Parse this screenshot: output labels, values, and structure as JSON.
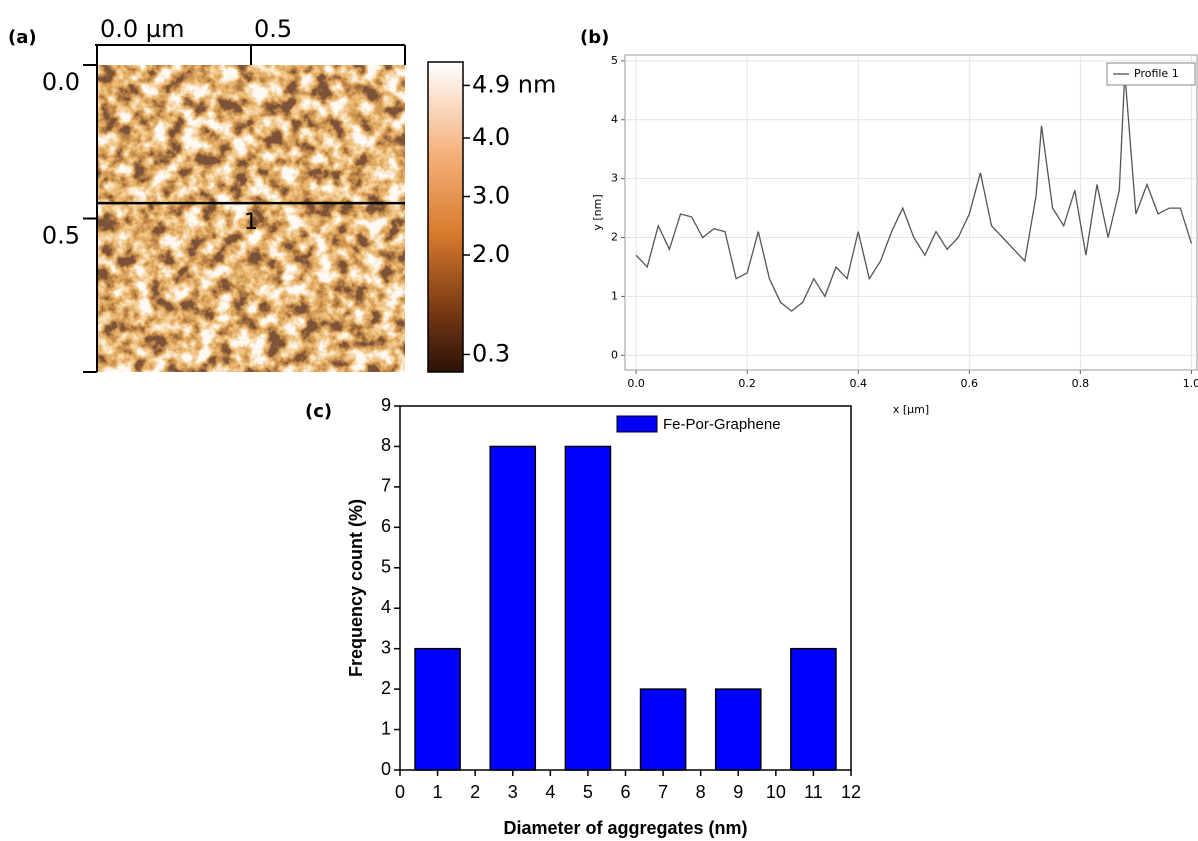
{
  "chart_data": [
    {
      "type": "image",
      "panel_label": "(a)",
      "xlim": [
        0,
        1
      ],
      "xticks": [
        {
          "value": 0,
          "label": "0.0 µm"
        },
        0.5
      ],
      "ylim": [
        0,
        1
      ],
      "yticks": [
        {
          "value": 0,
          "label": "0.0"
        },
        0.5
      ],
      "profile_line": {
        "label": "1",
        "y": 0.45
      },
      "colorbar": {
        "lim": [
          0,
          5.3
        ],
        "ticks": [
          {
            "value": 4.9,
            "label": "4.9 nm"
          },
          {
            "value": 4,
            "label": "4.0"
          },
          {
            "value": 3,
            "label": "3.0"
          },
          {
            "value": 2,
            "label": "2.0"
          },
          0.3
        ]
      }
    },
    {
      "type": "line",
      "panel_label": "(b)",
      "xlabel": "x [µm]",
      "ylabel": "y [nm]",
      "x": [
        0,
        0.02,
        0.04,
        0.06,
        0.08,
        0.1,
        0.12,
        0.14,
        0.16,
        0.18,
        0.2,
        0.22,
        0.24,
        0.26,
        0.28,
        0.3,
        0.32,
        0.34,
        0.36,
        0.38,
        0.4,
        0.42,
        0.44,
        0.46,
        0.48,
        0.5,
        0.52,
        0.54,
        0.56,
        0.58,
        0.6,
        0.62,
        0.64,
        0.66,
        0.68,
        0.7,
        0.72,
        0.73,
        0.75,
        0.77,
        0.79,
        0.81,
        0.83,
        0.85,
        0.87,
        0.88,
        0.9,
        0.92,
        0.94,
        0.96,
        0.98,
        1.0
      ],
      "series": [
        {
          "name": "Profile 1",
          "color": "#555555",
          "values": [
            1.7,
            1.5,
            2.2,
            1.8,
            2.4,
            2.35,
            2.0,
            2.15,
            2.1,
            1.3,
            1.4,
            2.1,
            1.3,
            0.9,
            0.75,
            0.9,
            1.3,
            1.0,
            1.5,
            1.3,
            2.1,
            1.3,
            1.6,
            2.1,
            2.5,
            2.0,
            1.7,
            2.1,
            1.8,
            2.0,
            2.4,
            3.1,
            2.2,
            2.0,
            1.8,
            1.6,
            2.7,
            3.9,
            2.5,
            2.2,
            2.8,
            1.7,
            2.9,
            2.0,
            2.8,
            4.8,
            2.4,
            2.9,
            2.4,
            2.5,
            2.5,
            1.9
          ]
        }
      ],
      "xlim": [
        -0.02,
        1.01
      ],
      "xticks": [
        {
          "value": 0,
          "label": "0.0"
        },
        0.2,
        0.4,
        0.6,
        0.8,
        {
          "value": 1,
          "label": "1.0"
        }
      ],
      "ylim": [
        -0.25,
        5.1
      ],
      "yticks": [
        0,
        1,
        2,
        3,
        4,
        5
      ],
      "grid": true,
      "legend": "upper right"
    },
    {
      "type": "bar",
      "panel_label": "(c)",
      "xlabel": "Diameter of aggregates (nm)",
      "ylabel": "Frequency count (%)",
      "x": [
        1,
        3,
        5,
        7,
        9,
        11
      ],
      "series": [
        {
          "name": "Fe-Por-Graphene",
          "color": "#0000ff",
          "values": [
            3,
            8,
            8,
            2,
            2,
            3
          ]
        }
      ],
      "xlim": [
        0,
        12
      ],
      "xticks": [
        0,
        1,
        2,
        3,
        4,
        5,
        6,
        7,
        8,
        9,
        10,
        11,
        12
      ],
      "ylim": [
        0,
        9
      ],
      "yticks": [
        0,
        1,
        2,
        3,
        4,
        5,
        6,
        7,
        8,
        9
      ],
      "legend": "upper right"
    }
  ]
}
